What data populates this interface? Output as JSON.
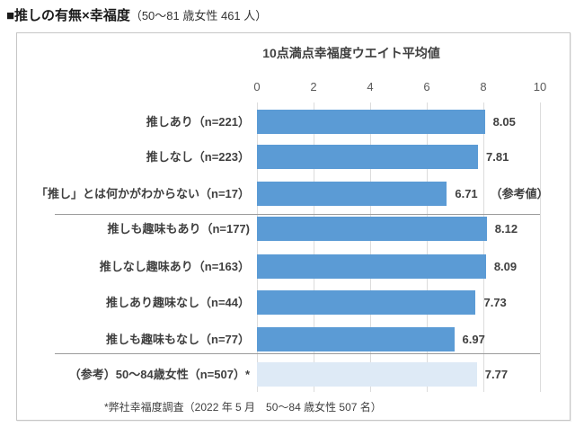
{
  "page": {
    "title_main": "■推しの有無×幸福度",
    "title_sub": "（50〜81 歳女性 461 人）"
  },
  "chart_data": {
    "type": "bar",
    "orientation": "horizontal",
    "title": "10点満点幸福度ウエイト平均値",
    "xlabel": "",
    "ylabel": "",
    "xlim": [
      0,
      10
    ],
    "ticks": [
      "0",
      "2",
      "4",
      "6",
      "8",
      "10"
    ],
    "grid": true,
    "axis_position": "top",
    "colors": {
      "bar": "#5B9BD5",
      "reference_bar": "#DEEAF6",
      "gridline": "#DCDCDC",
      "separator": "#9B9B9B"
    },
    "rows": [
      {
        "label": "推しあり（n=221）",
        "value": 8.05,
        "value_label": "8.05"
      },
      {
        "label": "推しなし（n=223）",
        "value": 7.81,
        "value_label": "7.81"
      },
      {
        "label": "「推し」とは何かがわからない（n=17）",
        "value": 6.71,
        "value_label": "6.71",
        "note": "（参考値）"
      },
      {
        "label": "推しも趣味もあり（n=177)",
        "value": 8.12,
        "value_label": "8.12"
      },
      {
        "label": "推しなし趣味あり（n=163）",
        "value": 8.09,
        "value_label": "8.09"
      },
      {
        "label": "推しあり趣味なし（n=44）",
        "value": 7.73,
        "value_label": "7.73"
      },
      {
        "label": "推しも趣味もなし（n=77）",
        "value": 6.97,
        "value_label": "6.97"
      },
      {
        "label": "（参考）50〜84歳女性（n=507）*",
        "value": 7.77,
        "value_label": "7.77",
        "reference": true
      }
    ],
    "separators_after_row_index": [
      2,
      6
    ],
    "footnote": "*弊社幸福度調査（2022 年 5 月　50〜84 歳女性 507 名）"
  }
}
